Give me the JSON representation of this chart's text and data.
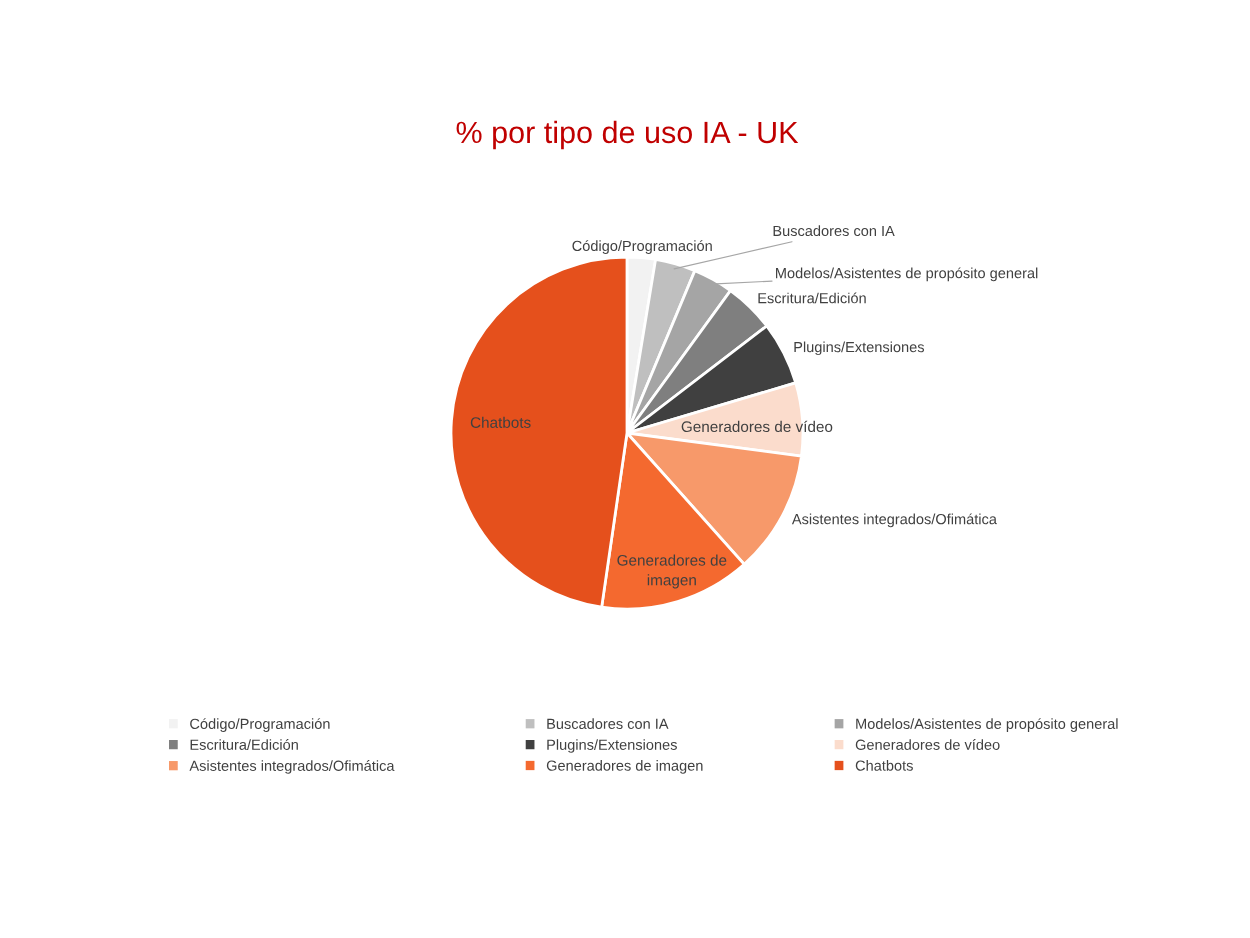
{
  "chart_data": {
    "type": "pie",
    "title": "% por tipo de uso IA - UK",
    "categories": [
      "Código/Programación",
      "Buscadores con IA",
      "Modelos/Asistentes de propósito general",
      "Escritura/Edición",
      "Plugins/Extensiones",
      "Generadores de vídeo",
      "Asistentes integrados/Ofimática",
      "Generadores de imagen",
      "Chatbots"
    ],
    "values": [
      2.6,
      3.7,
      3.7,
      4.6,
      5.8,
      6.7,
      11.3,
      13.9,
      47.7
    ],
    "colors": [
      "#f2f2f2",
      "#bfbfbf",
      "#a5a5a5",
      "#7f7f7f",
      "#404040",
      "#fbdccc",
      "#f7996a",
      "#f4692f",
      "#e5501c"
    ],
    "legend": "bottom"
  }
}
